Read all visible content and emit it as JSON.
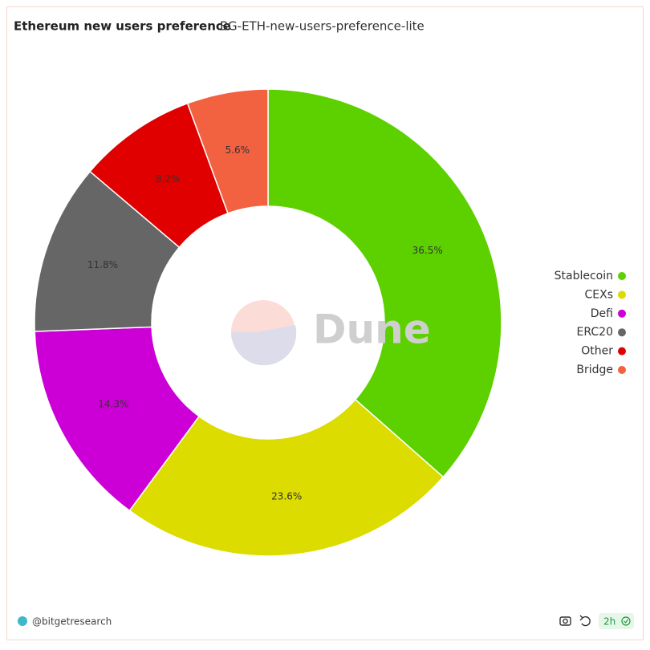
{
  "chart_data": {
    "type": "donut",
    "title": "Ethereum new users preference",
    "subtitle": "BG-ETH-new-users-preference-lite",
    "categories": [
      "Stablecoin",
      "CEXs",
      "Defi",
      "ERC20",
      "Other",
      "Bridge"
    ],
    "values": [
      36.5,
      23.6,
      14.3,
      11.8,
      8.2,
      5.6
    ],
    "value_labels": [
      "36.5%",
      "23.6%",
      "14.3%",
      "11.8%",
      "8.2%",
      "5.6%"
    ],
    "colors": [
      "#5dd000",
      "#dcdc00",
      "#cc00d6",
      "#666666",
      "#e00000",
      "#f26140"
    ],
    "legend": "right"
  },
  "watermark": "Dune",
  "footer": {
    "author": "@bitgetresearch",
    "refresh": "2h"
  }
}
